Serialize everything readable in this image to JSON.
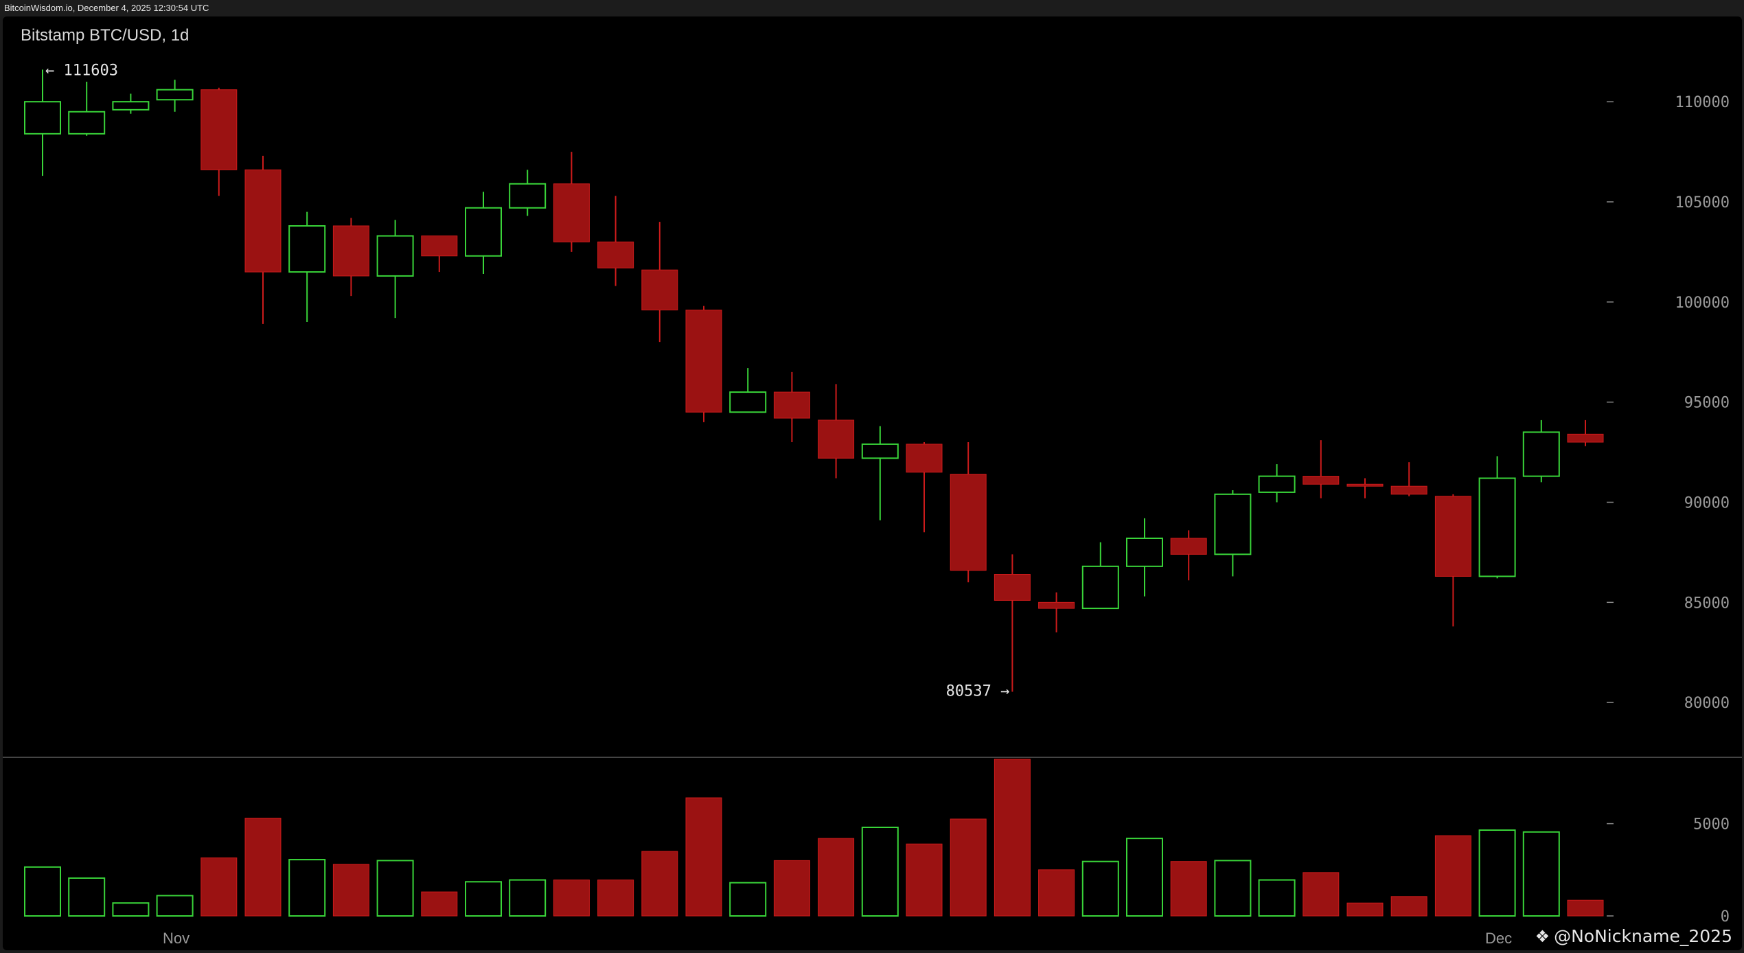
{
  "header": {
    "timestamp_text": "BitcoinWisdom.io, December 4, 2025 12:30:54 UTC"
  },
  "watermark": {
    "icon": "butterfly-icon",
    "text": "@NoNickname_2025"
  },
  "chart_data": {
    "type": "candlestick",
    "title": "Bitstamp BTC/USD, 1d",
    "price_axis": {
      "ticks": [
        80000,
        85000,
        90000,
        95000,
        100000,
        105000,
        110000
      ],
      "range": [
        78600,
        112200
      ]
    },
    "volume_axis": {
      "ticks": [
        0,
        5000
      ],
      "range": [
        0,
        8000
      ]
    },
    "x_labels": [
      {
        "index": 3,
        "label": "Nov"
      },
      {
        "index": 33,
        "label": "Dec"
      }
    ],
    "annotations": {
      "high": {
        "index": 0,
        "value": 111603,
        "label": "← 111603"
      },
      "low": {
        "index": 22,
        "value": 80537,
        "label": "80537 →"
      }
    },
    "colors": {
      "up": "#39d439",
      "down": "#9b1212",
      "down_wick": "#cc1b1b",
      "background": "#000000",
      "axis_text": "#9a9a9a"
    },
    "candles": [
      {
        "o": 108400,
        "h": 111603,
        "l": 106300,
        "c": 110000,
        "v": 2650
      },
      {
        "o": 108400,
        "h": 111000,
        "l": 108300,
        "c": 109500,
        "v": 2050
      },
      {
        "o": 109600,
        "h": 110400,
        "l": 109400,
        "c": 110000,
        "v": 700
      },
      {
        "o": 110100,
        "h": 111100,
        "l": 109500,
        "c": 110600,
        "v": 1100
      },
      {
        "o": 110600,
        "h": 110700,
        "l": 105300,
        "c": 106600,
        "v": 3150
      },
      {
        "o": 106600,
        "h": 107300,
        "l": 98900,
        "c": 101500,
        "v": 5300
      },
      {
        "o": 101500,
        "h": 104500,
        "l": 99000,
        "c": 103800,
        "v": 3050
      },
      {
        "o": 103800,
        "h": 104200,
        "l": 100300,
        "c": 101300,
        "v": 2800
      },
      {
        "o": 101300,
        "h": 104100,
        "l": 99200,
        "c": 103300,
        "v": 3000
      },
      {
        "o": 103300,
        "h": 103300,
        "l": 101500,
        "c": 102300,
        "v": 1300
      },
      {
        "o": 102300,
        "h": 105500,
        "l": 101400,
        "c": 104700,
        "v": 1850
      },
      {
        "o": 104700,
        "h": 106600,
        "l": 104300,
        "c": 105900,
        "v": 1950
      },
      {
        "o": 105900,
        "h": 107500,
        "l": 102500,
        "c": 103000,
        "v": 1950
      },
      {
        "o": 103000,
        "h": 105300,
        "l": 100800,
        "c": 101700,
        "v": 1950
      },
      {
        "o": 101600,
        "h": 104000,
        "l": 98000,
        "c": 99600,
        "v": 3500
      },
      {
        "o": 99600,
        "h": 99800,
        "l": 94000,
        "c": 94500,
        "v": 6400
      },
      {
        "o": 94500,
        "h": 96700,
        "l": 94500,
        "c": 95500,
        "v": 1800
      },
      {
        "o": 95500,
        "h": 96500,
        "l": 93000,
        "c": 94200,
        "v": 3000
      },
      {
        "o": 94100,
        "h": 95900,
        "l": 91200,
        "c": 92200,
        "v": 4200
      },
      {
        "o": 92200,
        "h": 93800,
        "l": 89100,
        "c": 92900,
        "v": 4800
      },
      {
        "o": 92900,
        "h": 93000,
        "l": 88500,
        "c": 91500,
        "v": 3900
      },
      {
        "o": 91400,
        "h": 93000,
        "l": 86000,
        "c": 86600,
        "v": 5250
      },
      {
        "o": 86400,
        "h": 87400,
        "l": 80537,
        "c": 85100,
        "v": 8500
      },
      {
        "o": 85000,
        "h": 85500,
        "l": 83500,
        "c": 84700,
        "v": 2500
      },
      {
        "o": 84700,
        "h": 88000,
        "l": 84700,
        "c": 86800,
        "v": 2950
      },
      {
        "o": 86800,
        "h": 89200,
        "l": 85300,
        "c": 88200,
        "v": 4200
      },
      {
        "o": 88200,
        "h": 88600,
        "l": 86100,
        "c": 87400,
        "v": 2950
      },
      {
        "o": 87400,
        "h": 90600,
        "l": 86300,
        "c": 90400,
        "v": 3000
      },
      {
        "o": 90500,
        "h": 91900,
        "l": 90000,
        "c": 91300,
        "v": 1950
      },
      {
        "o": 91300,
        "h": 93100,
        "l": 90200,
        "c": 90900,
        "v": 2350
      },
      {
        "o": 90900,
        "h": 91200,
        "l": 90200,
        "c": 90800,
        "v": 700
      },
      {
        "o": 90800,
        "h": 92000,
        "l": 90300,
        "c": 90400,
        "v": 1050
      },
      {
        "o": 90300,
        "h": 90400,
        "l": 83800,
        "c": 86300,
        "v": 4350
      },
      {
        "o": 86300,
        "h": 92300,
        "l": 86200,
        "c": 91200,
        "v": 4650
      },
      {
        "o": 91300,
        "h": 94100,
        "l": 91000,
        "c": 93500,
        "v": 4550
      },
      {
        "o": 93400,
        "h": 94100,
        "l": 92800,
        "c": 93000,
        "v": 850
      }
    ]
  }
}
